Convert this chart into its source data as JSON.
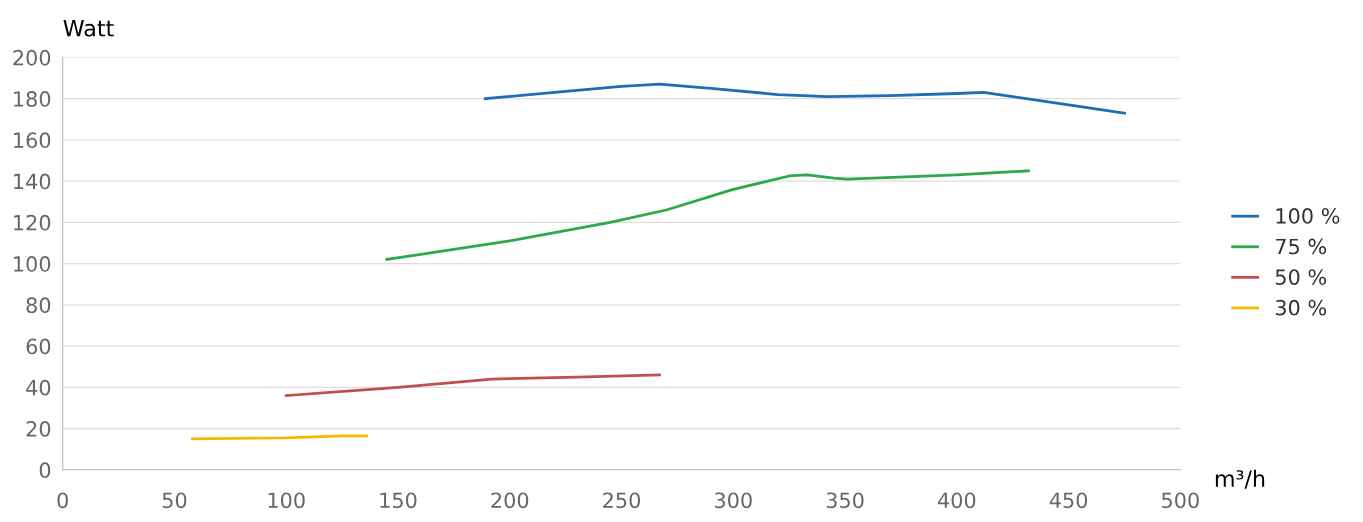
{
  "chart_data": {
    "type": "line",
    "ylabel": "Watt",
    "xlabel": "m³/h",
    "xlim": [
      0,
      500
    ],
    "ylim": [
      0,
      200
    ],
    "xticks": [
      0,
      50,
      100,
      150,
      200,
      250,
      300,
      350,
      400,
      450,
      500
    ],
    "yticks": [
      0,
      20,
      40,
      60,
      80,
      100,
      120,
      140,
      160,
      180,
      200
    ],
    "grid": "y",
    "legend": "right",
    "marker": "none",
    "line_style": "solid",
    "series": [
      {
        "name": "100 %",
        "color": "#1f6db5",
        "x": [
          189,
          220,
          250,
          267,
          290,
          320,
          342,
          370,
          400,
          412,
          425,
          450,
          475
        ],
        "values": [
          180,
          183,
          186,
          187,
          185,
          182,
          181,
          181.5,
          182.5,
          183,
          181,
          177,
          173
        ]
      },
      {
        "name": "75 %",
        "color": "#2ea84a",
        "x": [
          145,
          200,
          245,
          270,
          300,
          325,
          333,
          345,
          351,
          400,
          432
        ],
        "values": [
          102,
          111,
          120,
          126,
          136,
          142.5,
          143,
          141.5,
          141,
          143,
          145
        ]
      },
      {
        "name": "50 %",
        "color": "#c0504d",
        "x": [
          100,
          150,
          192,
          230,
          267
        ],
        "values": [
          36,
          40,
          44,
          45,
          46
        ]
      },
      {
        "name": "30 %",
        "color": "#f5b800",
        "x": [
          58,
          100,
          125,
          136
        ],
        "values": [
          15,
          15.5,
          16.5,
          16.5
        ]
      }
    ]
  }
}
